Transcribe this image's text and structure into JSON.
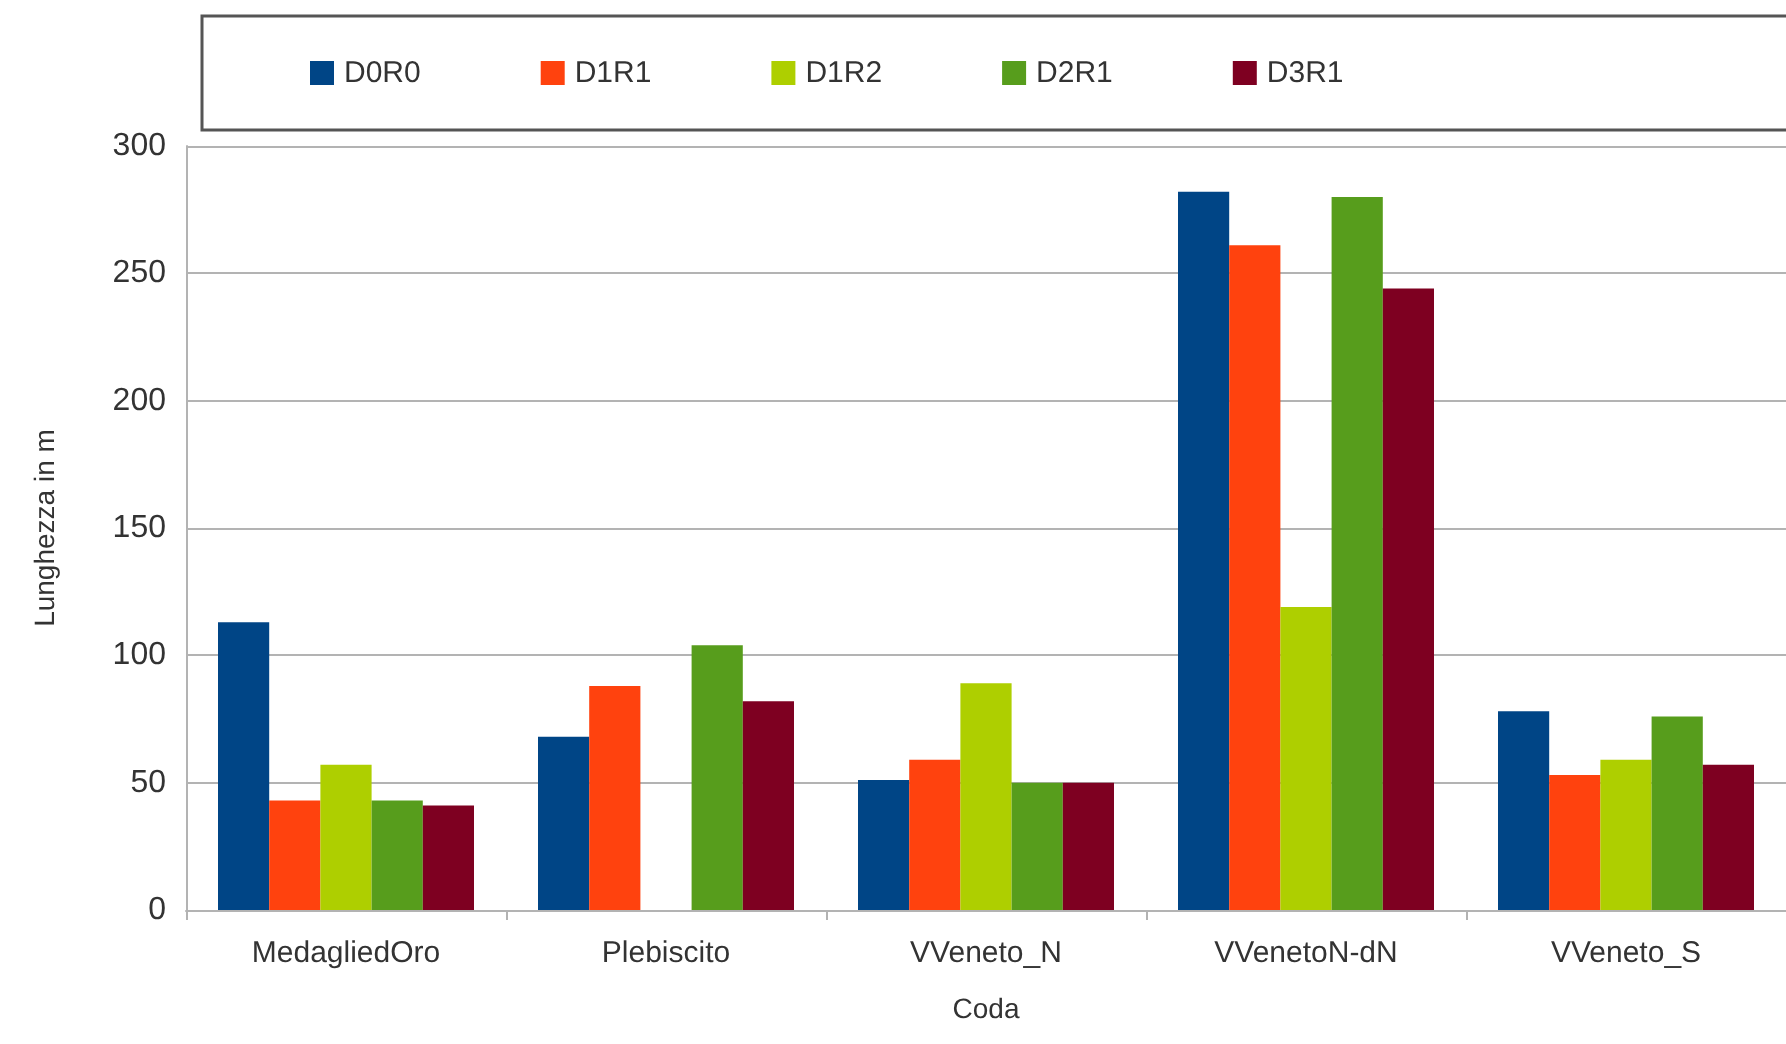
{
  "chart_data": {
    "type": "bar",
    "xlabel": "Coda",
    "ylabel": "Lunghezza in m",
    "categories": [
      "MedagliedOro",
      "Plebiscito",
      "VVeneto_N",
      "VVenetoN-dN",
      "VVeneto_S"
    ],
    "series": [
      {
        "name": "D0R0",
        "color": "#004586",
        "values": [
          113,
          68,
          51,
          282,
          78
        ]
      },
      {
        "name": "D1R1",
        "color": "#ff420e",
        "values": [
          43,
          88,
          59,
          261,
          53
        ]
      },
      {
        "name": "D1R2",
        "color": "#aecf00",
        "values": [
          57,
          null,
          89,
          119,
          59
        ]
      },
      {
        "name": "D2R1",
        "color": "#579d1c",
        "values": [
          43,
          104,
          50,
          280,
          76
        ]
      },
      {
        "name": "D3R1",
        "color": "#7e0021",
        "values": [
          41,
          82,
          50,
          244,
          57
        ]
      }
    ],
    "ylim": [
      0,
      300
    ],
    "yticks": [
      0,
      50,
      100,
      150,
      200,
      250,
      300
    ],
    "grid": "y",
    "legend": "top"
  }
}
